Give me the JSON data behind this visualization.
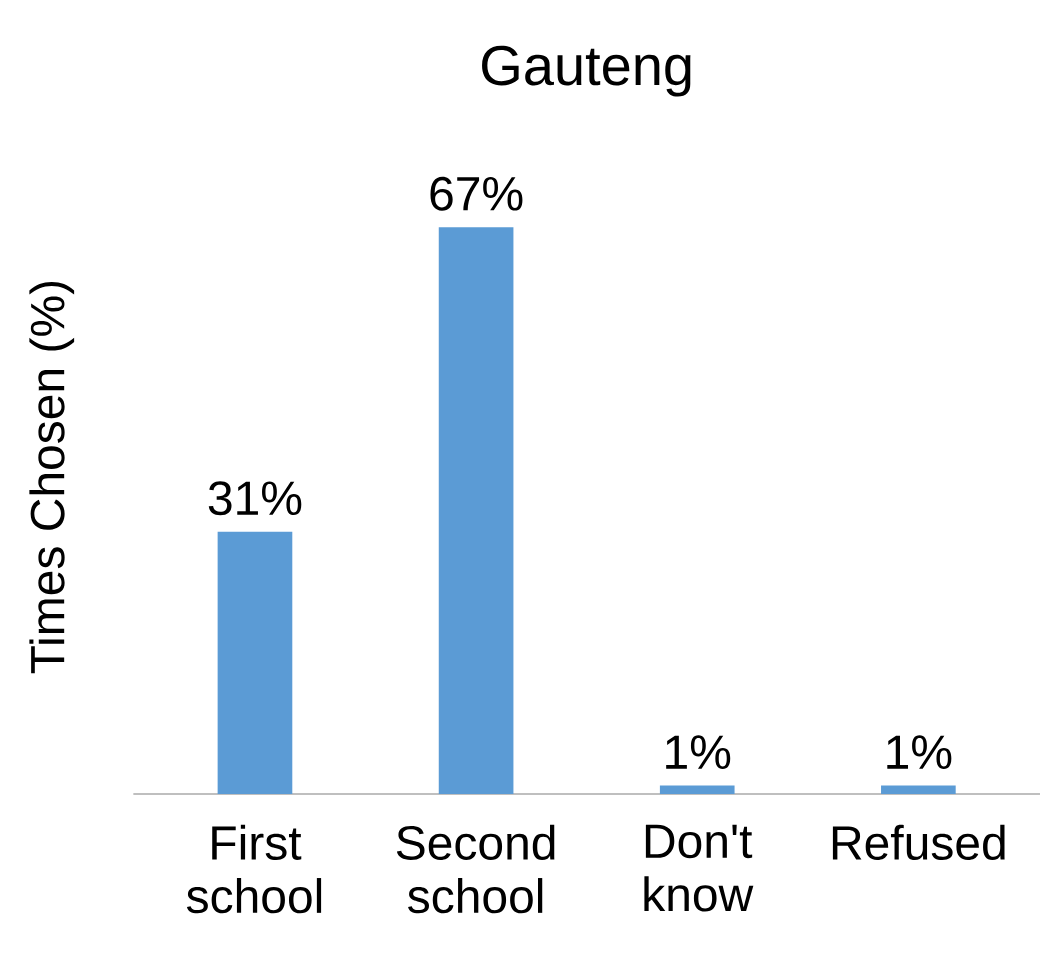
{
  "chart_data": {
    "type": "bar",
    "title": "Gauteng",
    "ylabel": "Times Chosen (%)",
    "categories": [
      "First school",
      "Second school",
      "Don't know",
      "Refused"
    ],
    "values": [
      31,
      67,
      1,
      1
    ],
    "value_labels": [
      "31%",
      "67%",
      "1%",
      "1%"
    ],
    "color": "#5b9bd5",
    "tick_labels": "x"
  }
}
